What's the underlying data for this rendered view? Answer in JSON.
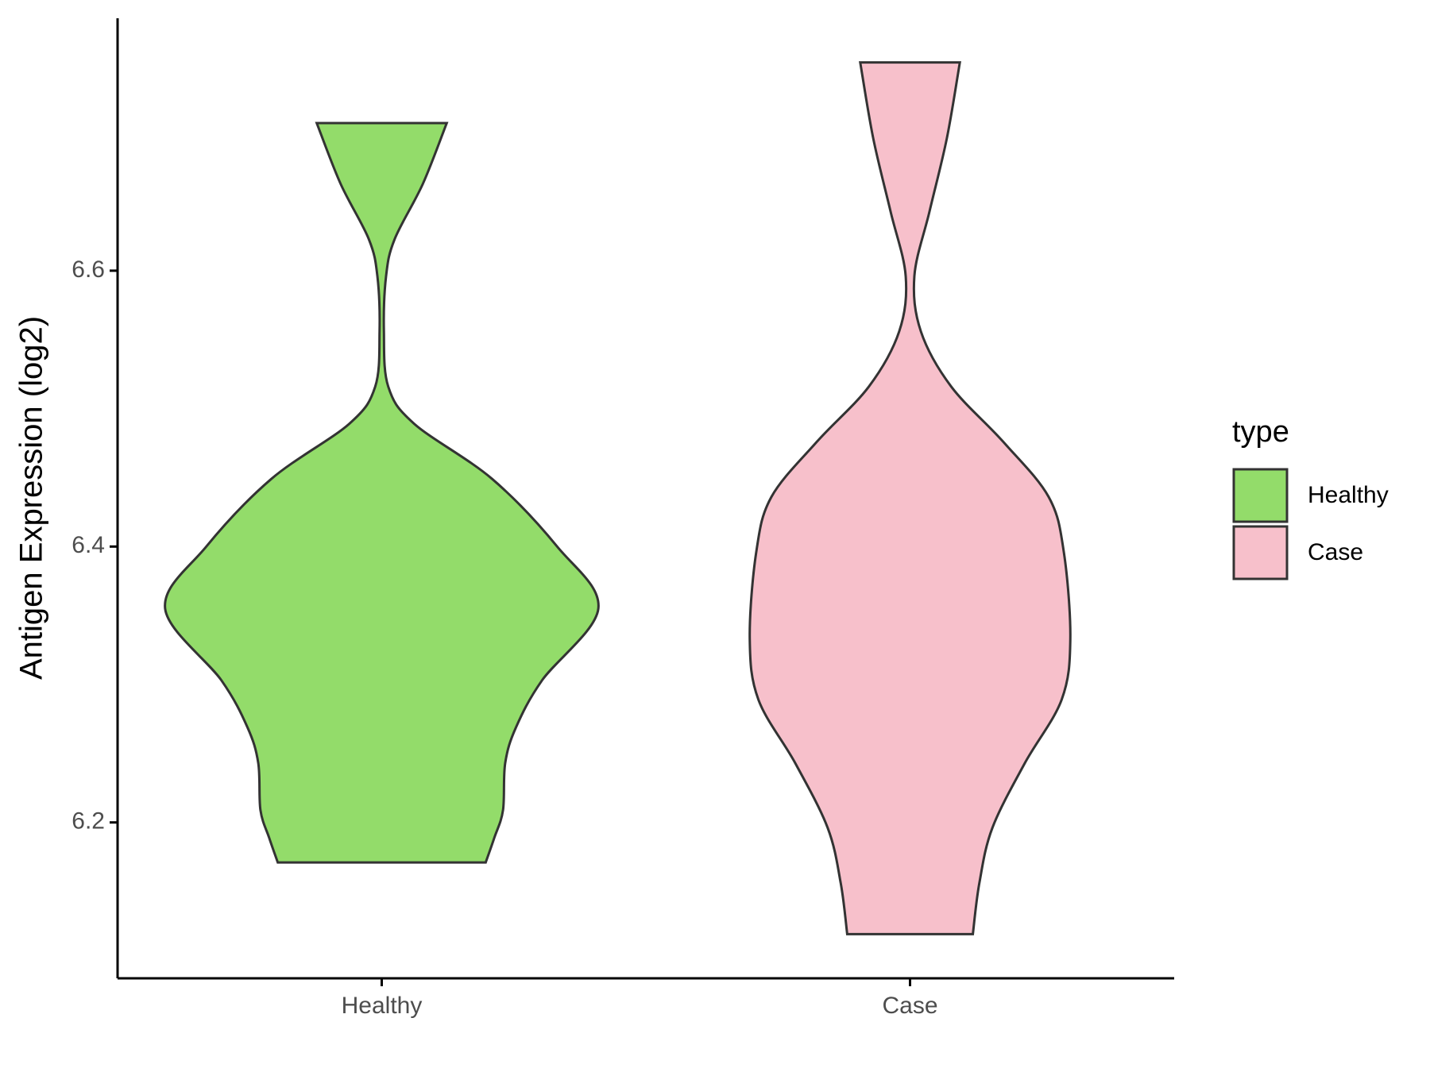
{
  "chart_data": {
    "type": "violin",
    "y_label": "Antigen Expression (log2)",
    "categories": [
      "Healthy",
      "Case"
    ],
    "ylim": [
      6.087,
      6.783
    ],
    "yticks": [
      6.2,
      6.4,
      6.6
    ],
    "legend_title": "type",
    "legend_position": "right",
    "series": [
      {
        "name": "Healthy",
        "color": "#93dc6a",
        "y": [
          6.707,
          6.663,
          6.623,
          6.596,
          6.556,
          6.516,
          6.489,
          6.449,
          6.4,
          6.355,
          6.303,
          6.269,
          6.243,
          6.209,
          6.189,
          6.171
        ],
        "density": [
          0.3,
          0.19,
          0.06,
          0.02,
          0.01,
          0.03,
          0.15,
          0.51,
          0.81,
          1.0,
          0.74,
          0.62,
          0.57,
          0.56,
          0.52,
          0.48
        ]
      },
      {
        "name": "Case",
        "color": "#f7c0cb",
        "y": [
          6.751,
          6.696,
          6.643,
          6.596,
          6.556,
          6.516,
          6.476,
          6.436,
          6.396,
          6.333,
          6.289,
          6.243,
          6.196,
          6.156,
          6.119
        ],
        "density": [
          0.23,
          0.17,
          0.09,
          0.02,
          0.05,
          0.19,
          0.43,
          0.64,
          0.71,
          0.74,
          0.7,
          0.53,
          0.38,
          0.32,
          0.29
        ]
      }
    ]
  }
}
